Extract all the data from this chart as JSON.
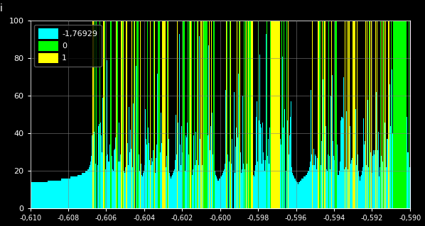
{
  "title": "",
  "ylabel": "i",
  "xmin": -0.61,
  "xmax": -0.59,
  "ymin": 0,
  "ymax": 100,
  "background_color": "#000000",
  "grid_color": "#808080",
  "tick_color": "#ffffff",
  "label_color": "#ffffff",
  "legend_entries": [
    "-1,76929",
    "0",
    "1"
  ],
  "legend_colors": [
    "#00ffff",
    "#00ff00",
    "#ffff00"
  ],
  "num_points": 2000,
  "max_iter": 100,
  "roots": [
    -1.7692923542386314,
    0.0,
    1.0
  ],
  "root_colors": [
    "#00ffff",
    "#00ff00",
    "#ffff00"
  ],
  "figwidth": 5.98,
  "figheight": 3.19,
  "dpi": 100
}
